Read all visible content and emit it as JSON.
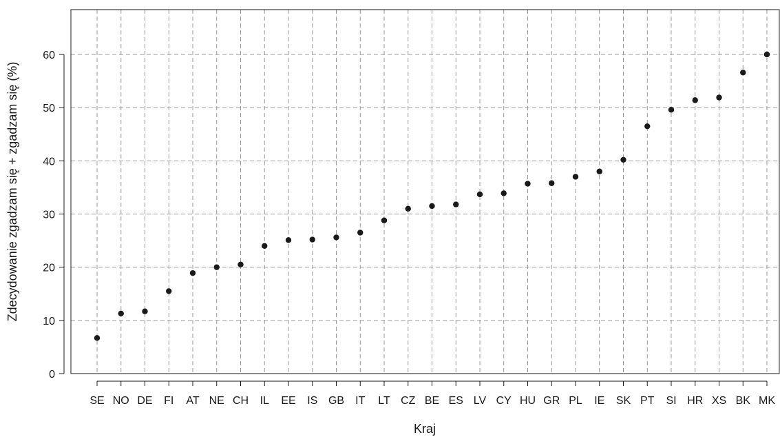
{
  "chart_data": {
    "type": "scatter",
    "title": "",
    "xlabel": "Kraj",
    "ylabel": "Zdecydowanie zgadzam się + zgadzam się (%)",
    "categories": [
      "SE",
      "NO",
      "DE",
      "FI",
      "AT",
      "NE",
      "CH",
      "IL",
      "EE",
      "IS",
      "GB",
      "IT",
      "LT",
      "CZ",
      "BE",
      "ES",
      "LV",
      "CY",
      "HU",
      "GR",
      "PL",
      "IE",
      "SK",
      "PT",
      "SI",
      "HR",
      "XS",
      "BK",
      "MK"
    ],
    "series": [
      {
        "values": [
          6.7,
          11.3,
          11.7,
          15.5,
          18.9,
          20.0,
          20.5,
          24.0,
          25.1,
          25.2,
          25.6,
          26.5,
          28.8,
          31.0,
          31.5,
          31.8,
          33.7,
          33.9,
          35.7,
          35.8,
          37.0,
          38.0,
          40.2,
          46.5,
          49.6,
          51.4,
          51.9,
          56.6,
          60.0
        ]
      }
    ],
    "ylim": [
      0,
      70
    ],
    "yticks": [
      0,
      10,
      20,
      30,
      40,
      50,
      60
    ],
    "grid": true,
    "grid_style": "dashed",
    "colors": {
      "point": "#1a1a1a",
      "grid": "#9a9a9a",
      "axis": "#1a1a1a",
      "text": "#1a1a1a"
    }
  }
}
